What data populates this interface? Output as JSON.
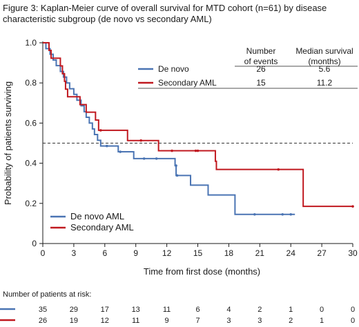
{
  "figure_title": "Figure 3: Kaplan-Meier curve of overall survival for MTD cohort (n=61) by disease characteristic subgroup (de novo vs secondary AML)",
  "colors": {
    "de_novo": "#4a74b3",
    "secondary": "#c0181f",
    "axis": "#1a1a1a",
    "reference_line": "#333333"
  },
  "stats_table": {
    "col_events": "Number of events",
    "col_median_line1": "Median survival",
    "col_median_line2": "(months)",
    "col_events_line1": "Number",
    "col_events_line2": "of events",
    "rows": [
      {
        "label": "De novo",
        "events": "26",
        "median": "5.6"
      },
      {
        "label": "Secondary AML",
        "events": "15",
        "median": "11.2"
      }
    ]
  },
  "risk_table": {
    "title": "Number of patients at risk:",
    "rows": [
      {
        "series": "De novo AML",
        "values": [
          "35",
          "29",
          "17",
          "13",
          "11",
          "6",
          "4",
          "2",
          "1",
          "0",
          "0"
        ]
      },
      {
        "series": "Secondary AML",
        "values": [
          "26",
          "19",
          "12",
          "11",
          "9",
          "7",
          "3",
          "3",
          "2",
          "1",
          "0"
        ]
      }
    ]
  },
  "chart_data": {
    "type": "line",
    "step": true,
    "xlabel": "Time from first dose (months)",
    "ylabel": "Probability of patients surviving",
    "xlim": [
      0,
      30
    ],
    "ylim": [
      0,
      1.0
    ],
    "xticks": [
      "0",
      "3",
      "6",
      "9",
      "12",
      "15",
      "18",
      "21",
      "24",
      "27",
      "30"
    ],
    "yticks": [
      "0",
      "0.2",
      "0.4",
      "0.6",
      "0.8",
      "1.0"
    ],
    "reference_line_y": 0.5,
    "legend": {
      "position": "bottom-left",
      "entries": [
        "De novo AML",
        "Secondary AML"
      ]
    },
    "series": [
      {
        "name": "De novo AML",
        "color": "#4a74b3",
        "steps": [
          [
            0,
            1.0
          ],
          [
            0.3,
            0.971
          ],
          [
            0.7,
            0.943
          ],
          [
            1.0,
            0.914
          ],
          [
            1.3,
            0.886
          ],
          [
            1.7,
            0.857
          ],
          [
            2.0,
            0.829
          ],
          [
            2.3,
            0.8
          ],
          [
            2.6,
            0.771
          ],
          [
            3.0,
            0.743
          ],
          [
            3.3,
            0.714
          ],
          [
            3.7,
            0.686
          ],
          [
            4.0,
            0.657
          ],
          [
            4.2,
            0.629
          ],
          [
            4.5,
            0.6
          ],
          [
            4.8,
            0.571
          ],
          [
            5.0,
            0.543
          ],
          [
            5.3,
            0.514
          ],
          [
            5.6,
            0.486
          ],
          [
            7.3,
            0.457
          ],
          [
            8.8,
            0.423
          ],
          [
            12.8,
            0.388
          ],
          [
            12.9,
            0.339
          ],
          [
            14.3,
            0.291
          ],
          [
            16.0,
            0.242
          ],
          [
            18.6,
            0.145
          ],
          [
            24.4,
            0.145
          ]
        ],
        "censored": [
          [
            6.2,
            0.486
          ],
          [
            7.5,
            0.457
          ],
          [
            9.8,
            0.423
          ],
          [
            11.0,
            0.423
          ],
          [
            12.9,
            0.388
          ],
          [
            13.0,
            0.339
          ],
          [
            20.5,
            0.145
          ],
          [
            23.2,
            0.145
          ],
          [
            24.0,
            0.145
          ]
        ]
      },
      {
        "name": "Secondary AML",
        "color": "#c0181f",
        "steps": [
          [
            0,
            1.0
          ],
          [
            0.6,
            0.962
          ],
          [
            0.8,
            0.923
          ],
          [
            1.7,
            0.885
          ],
          [
            1.9,
            0.846
          ],
          [
            2.1,
            0.808
          ],
          [
            2.2,
            0.769
          ],
          [
            2.4,
            0.731
          ],
          [
            3.6,
            0.692
          ],
          [
            4.2,
            0.654
          ],
          [
            5.1,
            0.615
          ],
          [
            5.4,
            0.564
          ],
          [
            8.2,
            0.513
          ],
          [
            11.2,
            0.462
          ],
          [
            16.7,
            0.41
          ],
          [
            16.8,
            0.369
          ],
          [
            25.2,
            0.185
          ],
          [
            30,
            0.185
          ]
        ],
        "censored": [
          [
            5.6,
            0.564
          ],
          [
            9.5,
            0.513
          ],
          [
            12.5,
            0.462
          ],
          [
            14.8,
            0.462
          ],
          [
            15.0,
            0.462
          ],
          [
            22.8,
            0.369
          ],
          [
            30,
            0.185
          ]
        ]
      }
    ]
  }
}
